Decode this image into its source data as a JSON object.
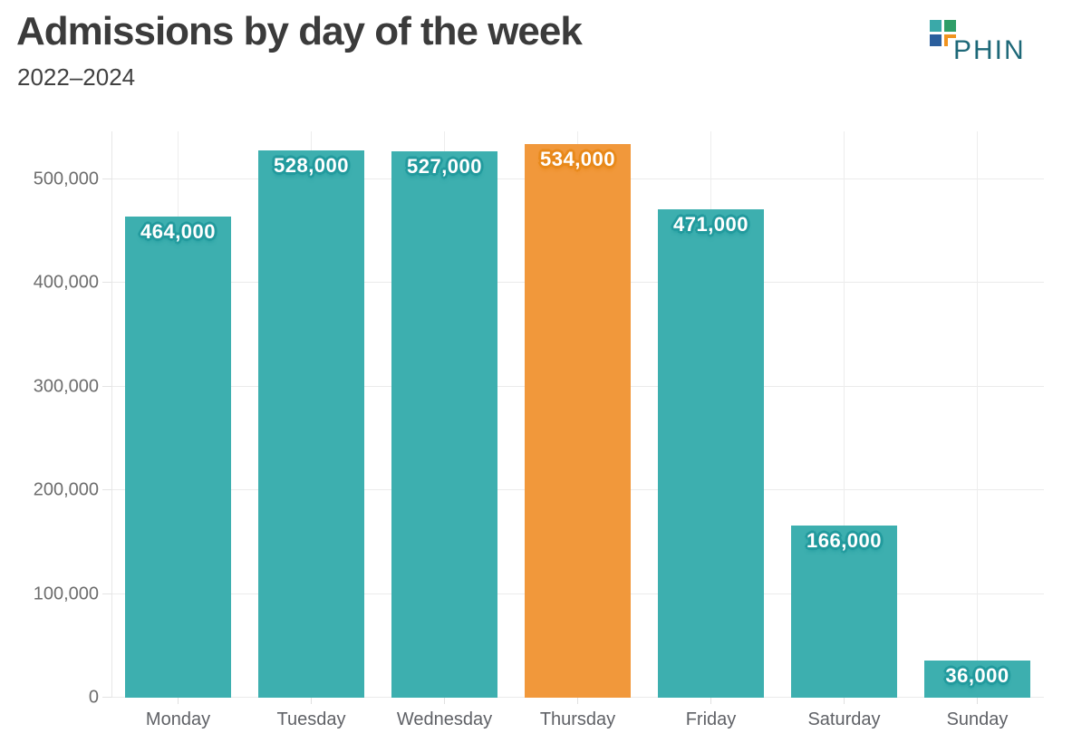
{
  "header": {
    "title": "Admissions by day of the week",
    "subtitle": "2022–2024"
  },
  "logo": {
    "text": "PHIN",
    "colors": {
      "square_teal": "#3aa9a9",
      "square_green": "#2f9e68",
      "square_blue": "#2b5f9d",
      "corner_orange": "#f0931f",
      "text": "#1d6878"
    }
  },
  "chart_data": {
    "type": "bar",
    "title": "Admissions by day of the week",
    "subtitle": "2022–2024",
    "categories": [
      "Monday",
      "Tuesday",
      "Wednesday",
      "Thursday",
      "Friday",
      "Saturday",
      "Sunday"
    ],
    "values": [
      464000,
      528000,
      527000,
      534000,
      471000,
      166000,
      36000
    ],
    "value_labels": [
      "464,000",
      "528,000",
      "527,000",
      "534,000",
      "471,000",
      "166,000",
      "36,000"
    ],
    "highlight_index": 3,
    "highlight_category": "Thursday",
    "yticks": [
      0,
      100000,
      200000,
      300000,
      400000,
      500000
    ],
    "ytick_labels": [
      "0",
      "100,000",
      "200,000",
      "300,000",
      "400,000",
      "500,000"
    ],
    "ylim": [
      0,
      546000
    ],
    "grid": {
      "horizontal": true,
      "vertical_at_category_centers": true
    },
    "legend": false,
    "bar_width_fraction": 0.8,
    "colors": {
      "bar": "#35acac",
      "bar_label_halo": "#229a9d",
      "highlight": "#f09433",
      "highlight_label_halo": "#e8891a",
      "gridline": "#ebebeb",
      "axis_text": "#6d6d6d",
      "title_text": "#3b3b3b"
    }
  }
}
